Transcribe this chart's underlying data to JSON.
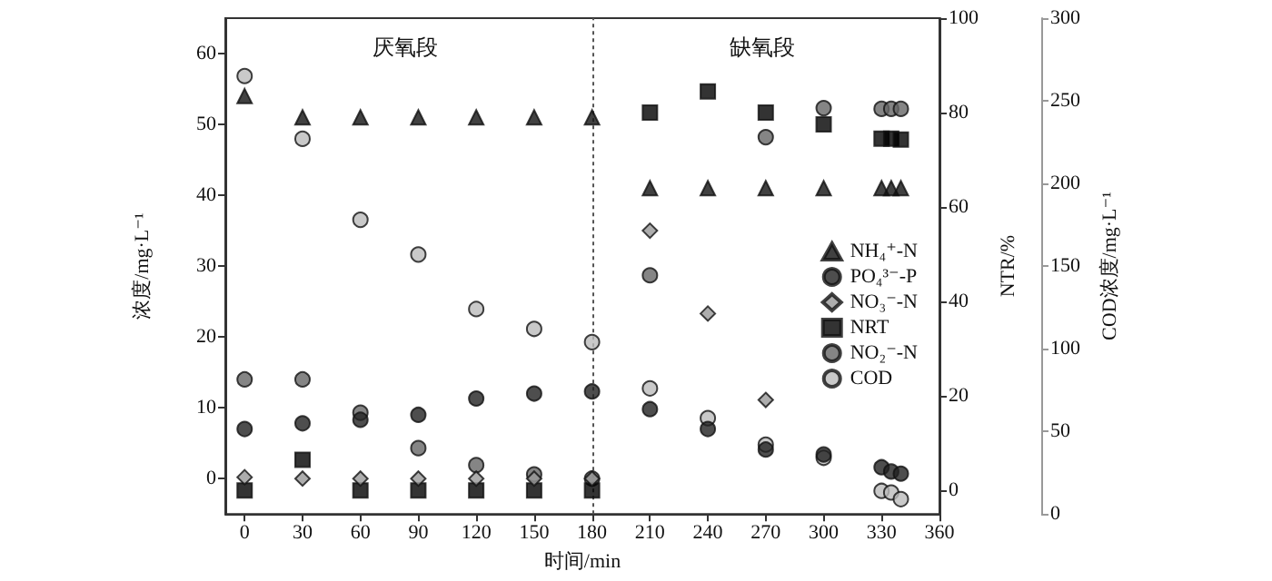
{
  "chart_data": {
    "type": "scatter",
    "xlabel": "时间/min",
    "ylabel": "浓度/mg·L⁻¹",
    "y2label": "NTR/%",
    "y3label": "COD浓度/mg·L⁻¹",
    "x": [
      0,
      30,
      60,
      90,
      120,
      150,
      180,
      210,
      240,
      270,
      300,
      330,
      335,
      340
    ],
    "xlim": [
      -10,
      360
    ],
    "xticks": [
      0,
      30,
      60,
      90,
      120,
      150,
      180,
      210,
      240,
      270,
      300,
      330,
      360
    ],
    "ylim": [
      -5,
      65
    ],
    "yticks": [
      0,
      10,
      20,
      30,
      40,
      50,
      60
    ],
    "y2lim": [
      -5,
      100
    ],
    "y2ticks": [
      0,
      20,
      40,
      60,
      80,
      100
    ],
    "y3lim": [
      0,
      300
    ],
    "y3ticks": [
      0,
      50,
      100,
      150,
      200,
      250,
      300
    ],
    "legend": "right",
    "grid": false,
    "ref_lines": [
      {
        "axis": "x",
        "value": 180,
        "line_style": "dotted",
        "color": "#555555"
      }
    ],
    "annotations": [
      "厌氧段",
      "缺氧段"
    ],
    "series": [
      {
        "name": "NH₄⁺-N",
        "color": "#111111",
        "marker": "triangle",
        "axis": "y",
        "values": [
          54,
          51,
          51,
          51,
          51,
          51,
          51,
          41,
          41,
          41,
          41,
          41,
          41,
          41
        ]
      },
      {
        "name": "PO₄³⁻-P",
        "color": "#222222",
        "marker": "circle",
        "axis": "y",
        "values": [
          7,
          7.8,
          8.3,
          9,
          11.3,
          12,
          12.3,
          9.8,
          7,
          4.1,
          3.4,
          1.6,
          1,
          0.7
        ]
      },
      {
        "name": "NO₃⁻-N",
        "color": "#999999",
        "marker": "diamond",
        "axis": "y",
        "values": [
          0.2,
          0,
          0,
          0,
          0,
          0,
          0,
          35,
          23.3,
          11.1,
          null,
          null,
          null,
          null
        ]
      },
      {
        "name": "NRT",
        "color": "#000000",
        "marker": "square",
        "axis": "y2",
        "values": [
          0,
          6.5,
          0,
          0,
          0,
          0,
          0,
          80,
          84.5,
          80,
          77.5,
          74.5,
          74.5,
          74.3
        ]
      },
      {
        "name": "NO₂⁻-N",
        "color": "#666666",
        "marker": "circle",
        "axis": "y",
        "values": [
          14,
          14,
          9.3,
          4.3,
          1.9,
          0.6,
          0,
          28.7,
          null,
          48.2,
          52.3,
          52.2,
          52.2,
          52.2
        ]
      },
      {
        "name": "COD",
        "color": "#bbbbbb",
        "marker": "circle",
        "axis": "y3",
        "values": [
          265,
          227,
          178,
          157,
          124,
          112,
          104,
          76,
          58,
          42,
          34,
          14,
          13,
          9
        ]
      }
    ]
  }
}
